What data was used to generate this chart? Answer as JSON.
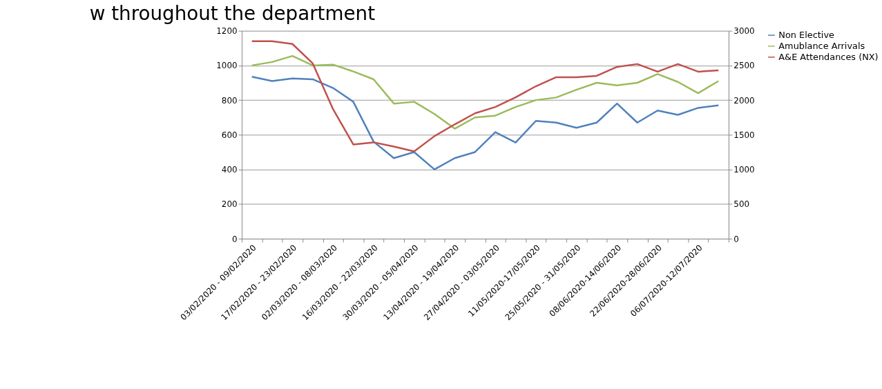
{
  "chart_data": {
    "type": "line",
    "title": "w throughout the department",
    "categories": [
      "03/02/2020 - 09/02/2020",
      null,
      "17/02/2020 - 23/02/2020",
      null,
      "02/03/2020 - 08/03/2020",
      null,
      "16/03/2020 - 22/03/2020",
      null,
      "30/03/2020 - 05/04/2020",
      null,
      "13/04/2020 - 19/04/2020",
      null,
      "27/04/2020 - 03/05/2020",
      null,
      "11/05/2020-17/05/2020",
      null,
      "25/05/2020 - 31/05/2020",
      null,
      "08/06/2020-14/06/2020",
      null,
      "22/06/2020-28/06/2020",
      null,
      "06/07/2020-12/07/2020",
      null
    ],
    "series": [
      {
        "name": "Non Elective",
        "color": "#4f81bd",
        "values": [
          935,
          910,
          925,
          920,
          870,
          790,
          560,
          465,
          500,
          400,
          465,
          500,
          615,
          555,
          680,
          670,
          640,
          670,
          780,
          670,
          740,
          715,
          755,
          770
        ]
      },
      {
        "name": "Amublance Arrivals",
        "color": "#9bbb59",
        "values": [
          1000,
          1020,
          1055,
          1000,
          1005,
          965,
          920,
          780,
          790,
          720,
          635,
          700,
          710,
          760,
          800,
          815,
          860,
          900,
          885,
          900,
          950,
          905,
          840,
          910
        ]
      },
      {
        "name": "A&E Attendances (NX)",
        "color": "#c0504d",
        "axis": "y2",
        "values": [
          2850,
          2850,
          2810,
          2530,
          1870,
          1360,
          1390,
          1330,
          1260,
          1480,
          1650,
          1810,
          1900,
          2040,
          2200,
          2330,
          2330,
          2350,
          2480,
          2520,
          2410,
          2520,
          2410,
          2430
        ]
      }
    ],
    "ylim": [
      0,
      1200
    ],
    "yticks": [
      0,
      200,
      400,
      600,
      800,
      1000,
      1200
    ],
    "y2lim": [
      0,
      3000
    ],
    "y2ticks": [
      0,
      500,
      1000,
      1500,
      2000,
      2500,
      3000
    ],
    "grid": "y",
    "legend": "right",
    "line_style": "solid",
    "marker": "none"
  }
}
